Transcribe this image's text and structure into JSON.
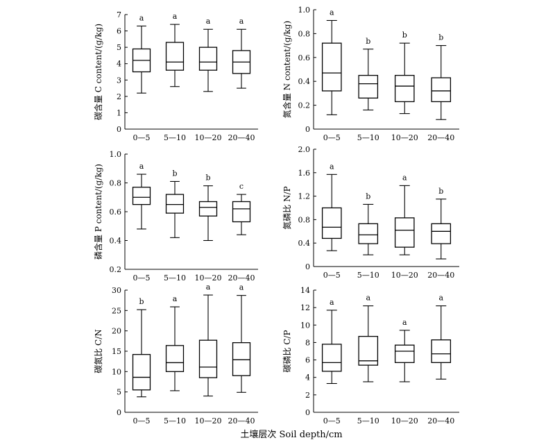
{
  "xlabel": "土壤层次 Soil depth/cm",
  "chart_data": [
    {
      "type": "box",
      "ylabel": "碳含量 C content/(g/kg)",
      "ylim": [
        0,
        7
      ],
      "yticks": [
        "0",
        "1",
        "2",
        "3",
        "4",
        "5",
        "6",
        "7"
      ],
      "categories": [
        "0—5",
        "5—10",
        "10—20",
        "20—40"
      ],
      "boxes": [
        {
          "min": 2.2,
          "q1": 3.5,
          "median": 4.2,
          "q3": 4.9,
          "max": 6.3,
          "letter": "a"
        },
        {
          "min": 2.6,
          "q1": 3.6,
          "median": 4.1,
          "q3": 5.3,
          "max": 6.4,
          "letter": "a"
        },
        {
          "min": 2.3,
          "q1": 3.6,
          "median": 4.1,
          "q3": 5.0,
          "max": 6.1,
          "letter": "a"
        },
        {
          "min": 2.5,
          "q1": 3.4,
          "median": 4.1,
          "q3": 4.8,
          "max": 6.1,
          "letter": "a"
        }
      ]
    },
    {
      "type": "box",
      "ylabel": "氮含量 N content/(g/kg)",
      "ylim": [
        0,
        1.0
      ],
      "yticks": [
        "0",
        "0.2",
        "0.4",
        "0.6",
        "0.8",
        "1.0"
      ],
      "categories": [
        "0—5",
        "5—10",
        "10—20",
        "20—40"
      ],
      "boxes": [
        {
          "min": 0.12,
          "q1": 0.32,
          "median": 0.47,
          "q3": 0.72,
          "max": 0.91,
          "letter": "a"
        },
        {
          "min": 0.16,
          "q1": 0.26,
          "median": 0.38,
          "q3": 0.45,
          "max": 0.67,
          "letter": "b"
        },
        {
          "min": 0.13,
          "q1": 0.23,
          "median": 0.36,
          "q3": 0.45,
          "max": 0.72,
          "letter": "b"
        },
        {
          "min": 0.08,
          "q1": 0.23,
          "median": 0.32,
          "q3": 0.43,
          "max": 0.7,
          "letter": "b"
        }
      ]
    },
    {
      "type": "box",
      "ylabel": "磷含量 P content/(g/kg)",
      "ylim": [
        0.2,
        1.0
      ],
      "yticks": [
        "0.2",
        "0.4",
        "0.6",
        "0.8",
        "1.0"
      ],
      "categories": [
        "0—5",
        "5—10",
        "10—20",
        "20—40"
      ],
      "boxes": [
        {
          "min": 0.48,
          "q1": 0.65,
          "median": 0.7,
          "q3": 0.77,
          "max": 0.86,
          "letter": "a"
        },
        {
          "min": 0.42,
          "q1": 0.59,
          "median": 0.65,
          "q3": 0.72,
          "max": 0.81,
          "letter": "b"
        },
        {
          "min": 0.4,
          "q1": 0.57,
          "median": 0.63,
          "q3": 0.67,
          "max": 0.78,
          "letter": "b"
        },
        {
          "min": 0.44,
          "q1": 0.53,
          "median": 0.62,
          "q3": 0.67,
          "max": 0.72,
          "letter": "c"
        }
      ]
    },
    {
      "type": "box",
      "ylabel": "氮磷比 N/P",
      "ylim": [
        0,
        2.0
      ],
      "yticks": [
        "0",
        "0.4",
        "0.8",
        "1.2",
        "1.6",
        "2.0"
      ],
      "categories": [
        "0—5",
        "5—10",
        "10—20",
        "20—40"
      ],
      "boxes": [
        {
          "min": 0.27,
          "q1": 0.48,
          "median": 0.67,
          "q3": 1.0,
          "max": 1.57,
          "letter": "a"
        },
        {
          "min": 0.2,
          "q1": 0.39,
          "median": 0.54,
          "q3": 0.73,
          "max": 1.06,
          "letter": "b"
        },
        {
          "min": 0.2,
          "q1": 0.33,
          "median": 0.62,
          "q3": 0.83,
          "max": 1.38,
          "letter": "a"
        },
        {
          "min": 0.13,
          "q1": 0.39,
          "median": 0.6,
          "q3": 0.73,
          "max": 1.15,
          "letter": "b"
        }
      ]
    },
    {
      "type": "box",
      "ylabel": "碳氮比 C/N",
      "ylim": [
        0,
        30
      ],
      "yticks": [
        "0",
        "5",
        "10",
        "15",
        "20",
        "25",
        "30"
      ],
      "categories": [
        "0—5",
        "5—10",
        "10—20",
        "20—40"
      ],
      "boxes": [
        {
          "min": 3.8,
          "q1": 5.5,
          "median": 8.6,
          "q3": 14.2,
          "max": 25.2,
          "letter": "b"
        },
        {
          "min": 5.3,
          "q1": 10.0,
          "median": 12.2,
          "q3": 16.4,
          "max": 25.9,
          "letter": "a"
        },
        {
          "min": 4.0,
          "q1": 8.5,
          "median": 11.1,
          "q3": 17.7,
          "max": 28.8,
          "letter": "a"
        },
        {
          "min": 4.9,
          "q1": 9.0,
          "median": 12.9,
          "q3": 17.1,
          "max": 28.7,
          "letter": "a"
        }
      ]
    },
    {
      "type": "box",
      "ylabel": "碳磷比 C/P",
      "ylim": [
        0,
        14
      ],
      "yticks": [
        "0",
        "2",
        "4",
        "6",
        "8",
        "10",
        "12",
        "14"
      ],
      "categories": [
        "0—5",
        "5—10",
        "10—20",
        "20—40"
      ],
      "boxes": [
        {
          "min": 3.3,
          "q1": 4.7,
          "median": 5.7,
          "q3": 7.8,
          "max": 11.7,
          "letter": "a"
        },
        {
          "min": 3.5,
          "q1": 5.4,
          "median": 5.9,
          "q3": 8.7,
          "max": 12.2,
          "letter": "a"
        },
        {
          "min": 3.5,
          "q1": 5.7,
          "median": 7.0,
          "q3": 7.7,
          "max": 9.4,
          "letter": "a"
        },
        {
          "min": 3.8,
          "q1": 5.7,
          "median": 6.7,
          "q3": 8.3,
          "max": 12.2,
          "letter": "a"
        }
      ]
    }
  ]
}
